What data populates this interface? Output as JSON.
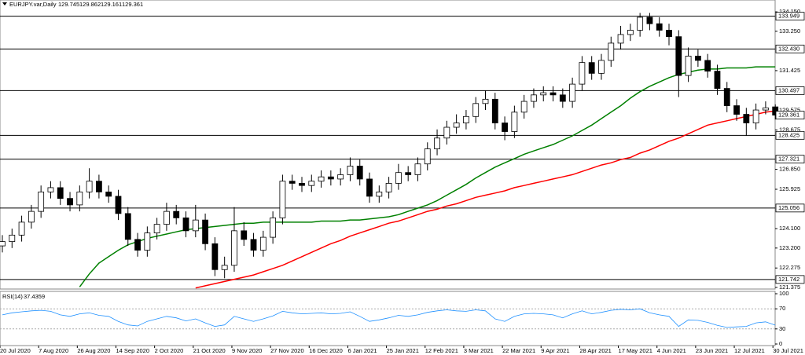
{
  "chart_data": [
    {
      "type": "candlestick",
      "title": "EURJPY.var,Daily",
      "ohlc": [
        129.745,
        129.862,
        129.161,
        129.361
      ],
      "candles": {
        "open": [
          123.3,
          123.5,
          123.8,
          124.4,
          124.9,
          125.8,
          126.0,
          125.5,
          125.2,
          125.8,
          126.3,
          125.8,
          125.6,
          124.8,
          123.6,
          123.1,
          123.9,
          124.3,
          124.9,
          124.6,
          124.0,
          124.5,
          123.4,
          122.2,
          122.4,
          124.0,
          123.6,
          123.1,
          123.7,
          124.6,
          126.3,
          126.2,
          126.1,
          126.3,
          126.5,
          126.4,
          126.6,
          127.0,
          126.4,
          125.6,
          125.8,
          126.2,
          126.7,
          126.6,
          127.1,
          127.8,
          128.3,
          128.8,
          129.0,
          129.3,
          129.9,
          130.1,
          129.0,
          128.6,
          129.5,
          130.0,
          130.3,
          130.4,
          130.3,
          130.0,
          130.8,
          131.8,
          131.3,
          131.9,
          132.7,
          133.1,
          133.3,
          133.9,
          133.6,
          133.3,
          133.0,
          131.2,
          132.1,
          131.9,
          131.4,
          130.6,
          129.8,
          129.4,
          129.0,
          129.6,
          129.745
        ],
        "high": [
          123.8,
          124.1,
          124.7,
          125.2,
          126.1,
          126.3,
          126.3,
          125.8,
          126.1,
          126.9,
          126.6,
          126.1,
          125.9,
          125.1,
          123.9,
          124.2,
          124.6,
          125.3,
          125.2,
          124.9,
          125.2,
          124.8,
          123.7,
          122.8,
          125.1,
          124.4,
          123.9,
          124.0,
          124.9,
          126.6,
          126.6,
          126.5,
          126.6,
          126.8,
          126.8,
          126.9,
          127.4,
          127.3,
          126.7,
          126.1,
          126.5,
          127.1,
          127.0,
          127.4,
          128.1,
          128.7,
          129.1,
          129.4,
          129.6,
          130.2,
          130.5,
          130.4,
          129.3,
          129.8,
          130.3,
          130.6,
          130.7,
          130.7,
          130.6,
          131.1,
          132.1,
          132.1,
          132.2,
          133.0,
          133.5,
          133.6,
          134.1,
          134.1,
          133.9,
          133.6,
          133.3,
          132.5,
          132.4,
          132.2,
          131.7,
          130.9,
          130.1,
          129.7,
          129.9,
          130.0,
          129.862
        ],
        "low": [
          123.0,
          123.2,
          123.5,
          124.1,
          124.6,
          125.5,
          125.2,
          124.9,
          124.9,
          125.5,
          125.5,
          125.3,
          124.5,
          123.3,
          122.8,
          122.8,
          123.6,
          124.0,
          124.3,
          123.7,
          123.7,
          123.1,
          121.9,
          121.8,
          122.1,
          123.3,
          122.8,
          122.8,
          123.4,
          124.3,
          125.9,
          125.8,
          125.8,
          126.0,
          126.1,
          126.1,
          126.3,
          126.1,
          125.3,
          125.3,
          125.5,
          125.9,
          126.3,
          126.3,
          126.8,
          127.5,
          128.0,
          128.5,
          128.7,
          129.0,
          129.6,
          128.7,
          128.2,
          128.3,
          129.2,
          129.7,
          130.0,
          130.0,
          129.7,
          129.7,
          130.5,
          131.0,
          131.0,
          131.6,
          132.4,
          132.8,
          133.0,
          133.3,
          133.0,
          132.6,
          130.2,
          130.9,
          131.6,
          131.1,
          130.3,
          129.5,
          129.1,
          128.4,
          128.7,
          129.4,
          129.161
        ],
        "close": [
          123.5,
          123.8,
          124.4,
          124.9,
          125.8,
          126.0,
          125.5,
          125.2,
          125.8,
          126.3,
          125.8,
          125.6,
          124.8,
          123.6,
          123.1,
          123.9,
          124.3,
          124.9,
          124.6,
          124.0,
          124.5,
          123.4,
          122.2,
          122.4,
          124.0,
          123.6,
          123.1,
          123.7,
          124.6,
          126.3,
          126.2,
          126.1,
          126.3,
          126.5,
          126.4,
          126.6,
          127.0,
          126.4,
          125.6,
          125.8,
          126.2,
          126.7,
          126.6,
          127.1,
          127.8,
          128.3,
          128.8,
          129.0,
          129.3,
          129.9,
          130.1,
          129.0,
          128.6,
          129.5,
          130.0,
          130.3,
          130.4,
          130.3,
          130.0,
          130.8,
          131.8,
          131.3,
          131.9,
          132.7,
          133.1,
          133.3,
          133.9,
          133.6,
          133.3,
          133.0,
          131.2,
          132.1,
          131.9,
          131.4,
          130.6,
          129.8,
          129.4,
          129.0,
          129.6,
          129.7,
          129.361
        ]
      },
      "series": [
        {
          "color": "#008000",
          "values": [
            null,
            null,
            null,
            null,
            null,
            null,
            null,
            null,
            121.4,
            122.0,
            122.5,
            122.8,
            123.1,
            123.35,
            123.5,
            123.65,
            123.75,
            123.85,
            123.95,
            124.05,
            124.1,
            124.15,
            124.2,
            124.25,
            124.3,
            124.35,
            124.35,
            124.4,
            124.4,
            124.4,
            124.4,
            124.4,
            124.4,
            124.45,
            124.45,
            124.45,
            124.5,
            124.5,
            124.55,
            124.6,
            124.65,
            124.75,
            124.9,
            125.05,
            125.2,
            125.4,
            125.65,
            125.9,
            126.15,
            126.45,
            126.7,
            126.95,
            127.15,
            127.35,
            127.55,
            127.7,
            127.85,
            128.0,
            128.2,
            128.4,
            128.65,
            128.9,
            129.2,
            129.5,
            129.8,
            130.15,
            130.45,
            130.7,
            130.9,
            131.1,
            131.25,
            131.35,
            131.45,
            131.5,
            131.5,
            131.55,
            131.55,
            131.55,
            131.6,
            131.6,
            131.6
          ]
        },
        {
          "color": "#ff0000",
          "values": [
            null,
            null,
            null,
            null,
            null,
            null,
            null,
            null,
            null,
            null,
            null,
            null,
            null,
            null,
            null,
            null,
            null,
            null,
            null,
            null,
            121.35,
            121.45,
            121.55,
            121.65,
            121.75,
            121.85,
            121.95,
            122.1,
            122.25,
            122.4,
            122.6,
            122.8,
            123.0,
            123.2,
            123.4,
            123.55,
            123.75,
            123.9,
            124.05,
            124.2,
            124.35,
            124.45,
            124.6,
            124.75,
            124.9,
            125.0,
            125.15,
            125.25,
            125.4,
            125.55,
            125.65,
            125.75,
            125.85,
            126.0,
            126.1,
            126.2,
            126.3,
            126.4,
            126.5,
            126.6,
            126.75,
            126.9,
            127.05,
            127.15,
            127.3,
            127.4,
            127.6,
            127.75,
            127.95,
            128.15,
            128.3,
            128.5,
            128.7,
            128.9,
            129.0,
            129.1,
            129.2,
            129.3,
            129.4,
            129.5,
            129.55
          ]
        }
      ],
      "levels": {
        "values": [
          133.949,
          132.43,
          130.497,
          128.425,
          127.321,
          125.056,
          121.742
        ],
        "value_labels": [
          "133.949",
          "132.430",
          "130.497",
          "128.425",
          "127.321",
          "125.056",
          "121.742"
        ]
      },
      "last_price": 129.361,
      "ylim": [
        121.3,
        134.7
      ],
      "yticks": [
        {
          "value": 134.15,
          "label": "134.150"
        },
        {
          "value": 133.25,
          "label": "133.250"
        },
        131.425,
        129.575,
        128.675,
        {
          "value": 126.85,
          "label": "126.850"
        },
        125.925,
        {
          "value": 124.1,
          "label": "124.100"
        },
        {
          "value": 123.2,
          "label": "123.200"
        },
        122.275,
        121.375
      ],
      "xticks": [
        {
          "value": 0,
          "label": "20 Jul 2020"
        },
        {
          "value": 4,
          "label": "7 Aug 2020"
        },
        {
          "value": 8,
          "label": "26 Aug 2020"
        },
        {
          "value": 12,
          "label": "14 Sep 2020"
        },
        {
          "value": 16,
          "label": "2 Oct 2020"
        },
        {
          "value": 20,
          "label": "21 Oct 2020"
        },
        {
          "value": 24,
          "label": "9 Nov 2020"
        },
        {
          "value": 28,
          "label": "27 Nov 2020"
        },
        {
          "value": 32,
          "label": "16 Dec 2020"
        },
        {
          "value": 36,
          "label": "6 Jan 2021"
        },
        {
          "value": 40,
          "label": "25 Jan 2021"
        },
        {
          "value": 44,
          "label": "12 Feb 2021"
        },
        {
          "value": 48,
          "label": "3 Mar 2021"
        },
        {
          "value": 52,
          "label": "22 Mar 2021"
        },
        {
          "value": 56,
          "label": "9 Apr 2021"
        },
        {
          "value": 60,
          "label": "28 Apr 2021"
        },
        {
          "value": 64,
          "label": "17 May 2021"
        },
        {
          "value": 68,
          "label": "4 Jun 2021"
        },
        {
          "value": 72,
          "label": "23 Jun 2021"
        },
        {
          "value": 76,
          "label": "12 Jul 2021"
        },
        {
          "value": 80,
          "label": "30 Jul 2021"
        }
      ]
    },
    {
      "type": "line",
      "title": "RSI(14)",
      "last_value": 37.4359,
      "color": "#1e90ff",
      "values": [
        58,
        62,
        64,
        66,
        67,
        65,
        58,
        55,
        60,
        62,
        57,
        55,
        45,
        38,
        36,
        45,
        50,
        55,
        52,
        46,
        50,
        42,
        35,
        38,
        55,
        50,
        45,
        50,
        56,
        65,
        62,
        60,
        61,
        62,
        60,
        61,
        64,
        55,
        45,
        48,
        52,
        57,
        55,
        58,
        63,
        66,
        68,
        66,
        65,
        68,
        66,
        50,
        45,
        55,
        60,
        61,
        60,
        58,
        52,
        60,
        66,
        60,
        63,
        67,
        69,
        68,
        70,
        62,
        58,
        55,
        35,
        48,
        47,
        43,
        37,
        33,
        34,
        35,
        42,
        44,
        37.4359
      ],
      "ylim": [
        0,
        100
      ],
      "yticks": [
        100,
        70,
        30,
        0
      ],
      "levels": [
        70,
        30
      ]
    }
  ]
}
